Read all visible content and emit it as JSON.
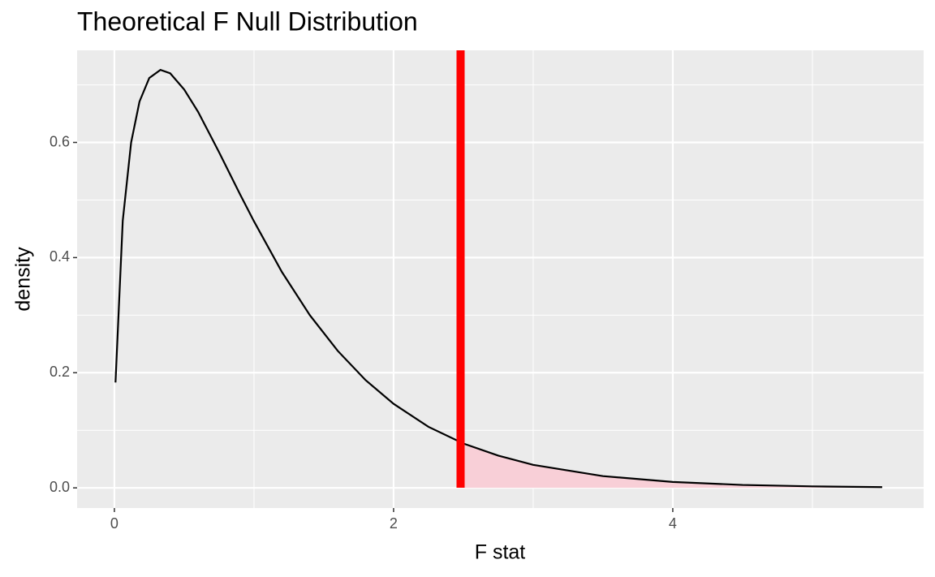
{
  "chart_data": {
    "type": "line",
    "title": "Theoretical F Null Distribution",
    "x_label": "F stat",
    "y_label": "density",
    "x": [
      0.008,
      0.06,
      0.12,
      0.18,
      0.25,
      0.33,
      0.4,
      0.5,
      0.6,
      0.75,
      0.9,
      1.0,
      1.2,
      1.4,
      1.6,
      1.8,
      2.0,
      2.25,
      2.5,
      2.75,
      3.0,
      3.5,
      4.0,
      4.5,
      5.0,
      5.5
    ],
    "series": [
      {
        "color": "#000000",
        "values": [
          0.183,
          0.464,
          0.6,
          0.671,
          0.712,
          0.726,
          0.72,
          0.692,
          0.653,
          0.583,
          0.51,
          0.463,
          0.375,
          0.3,
          0.238,
          0.187,
          0.146,
          0.106,
          0.077,
          0.056,
          0.04,
          0.0204,
          0.0103,
          0.0051,
          0.0026,
          0.0013
        ]
      }
    ],
    "vline": {
      "x": 2.48,
      "color": "#ff0000"
    },
    "shade_color": "#f8cfd7",
    "xlim": [
      -0.267,
      5.797
    ],
    "ylim": [
      -0.035,
      0.76
    ],
    "xticks": [
      0,
      2,
      4
    ],
    "yticks": [
      {
        "value": 0,
        "label": "0.0"
      },
      0.2,
      0.4,
      0.6
    ],
    "x_minor_grid": [
      1,
      3,
      5
    ],
    "y_minor_grid": [
      0.1,
      0.3,
      0.5,
      0.7
    ],
    "grid": true
  }
}
